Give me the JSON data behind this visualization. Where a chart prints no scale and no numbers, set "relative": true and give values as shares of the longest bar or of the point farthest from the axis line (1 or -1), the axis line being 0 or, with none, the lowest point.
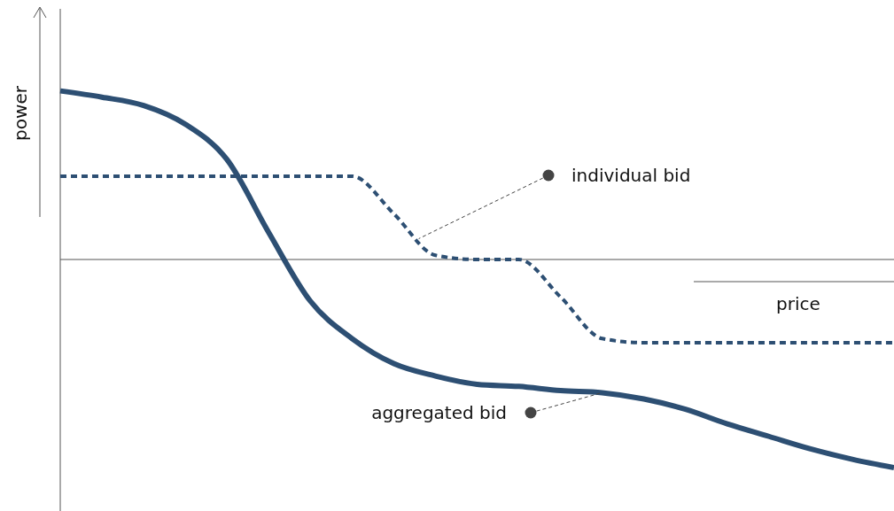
{
  "chart_data": {
    "type": "line",
    "relative": true,
    "xlabel": "price",
    "ylabel": "power",
    "legend": false,
    "categories": [
      null,
      null,
      null,
      null,
      null,
      null,
      null,
      null,
      null,
      null,
      null,
      null,
      null,
      null,
      null,
      null,
      null,
      null,
      null,
      null,
      null
    ],
    "series": [
      {
        "name": "aggregated bid",
        "color": "#2d4f73",
        "line_style": "solid",
        "values": [
          0.81,
          0.78,
          0.74,
          0.65,
          0.48,
          0.13,
          -0.2,
          -0.38,
          -0.5,
          -0.56,
          -0.6,
          -0.61,
          -0.63,
          -0.64,
          -0.67,
          -0.72,
          -0.79,
          -0.85,
          -0.91,
          -0.96,
          -1
        ]
      },
      {
        "name": "individual bid",
        "color": "#2d4f73",
        "line_style": "dashed",
        "values": [
          0.4,
          0.4,
          0.4,
          0.4,
          0.4,
          0.4,
          0.4,
          0.4,
          0.22,
          0.02,
          0,
          0,
          -0.18,
          -0.38,
          -0.4,
          -0.4,
          -0.4,
          -0.4,
          -0.4,
          -0.4,
          -0.4
        ]
      }
    ]
  }
}
